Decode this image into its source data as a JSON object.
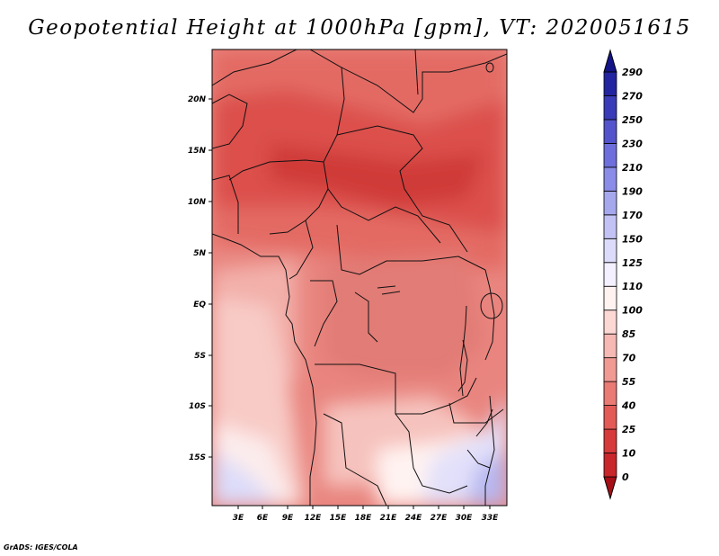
{
  "title": "Geopotential Height at 1000hPa [gpm], VT: 2020051615",
  "credit": "GrADS: IGES/COLA",
  "map": {
    "lat_labels": [
      "20N",
      "15N",
      "10N",
      "5N",
      "EQ",
      "5S",
      "10S",
      "15S"
    ],
    "lon_labels": [
      "3E",
      "6E",
      "9E",
      "12E",
      "15E",
      "18E",
      "21E",
      "24E",
      "27E",
      "30E",
      "33E"
    ],
    "lat_range": [
      -20,
      25
    ],
    "lon_range": [
      0,
      34
    ]
  },
  "colorbar": {
    "labels": [
      "0",
      "10",
      "25",
      "40",
      "55",
      "70",
      "85",
      "100",
      "110",
      "125",
      "150",
      "170",
      "190",
      "210",
      "230",
      "250",
      "270",
      "290"
    ],
    "colors": [
      "#a50f15",
      "#c8272b",
      "#d73a3a",
      "#e35a57",
      "#ea7a74",
      "#f19a94",
      "#f6b9b4",
      "#fcd8d4",
      "#fff3f1",
      "#f4f0ff",
      "#dcdcfa",
      "#c2c3f4",
      "#a6a8ee",
      "#8a8ce8",
      "#6e6fdc",
      "#5354cc",
      "#3a3bb8",
      "#2324a0",
      "#131488"
    ]
  }
}
